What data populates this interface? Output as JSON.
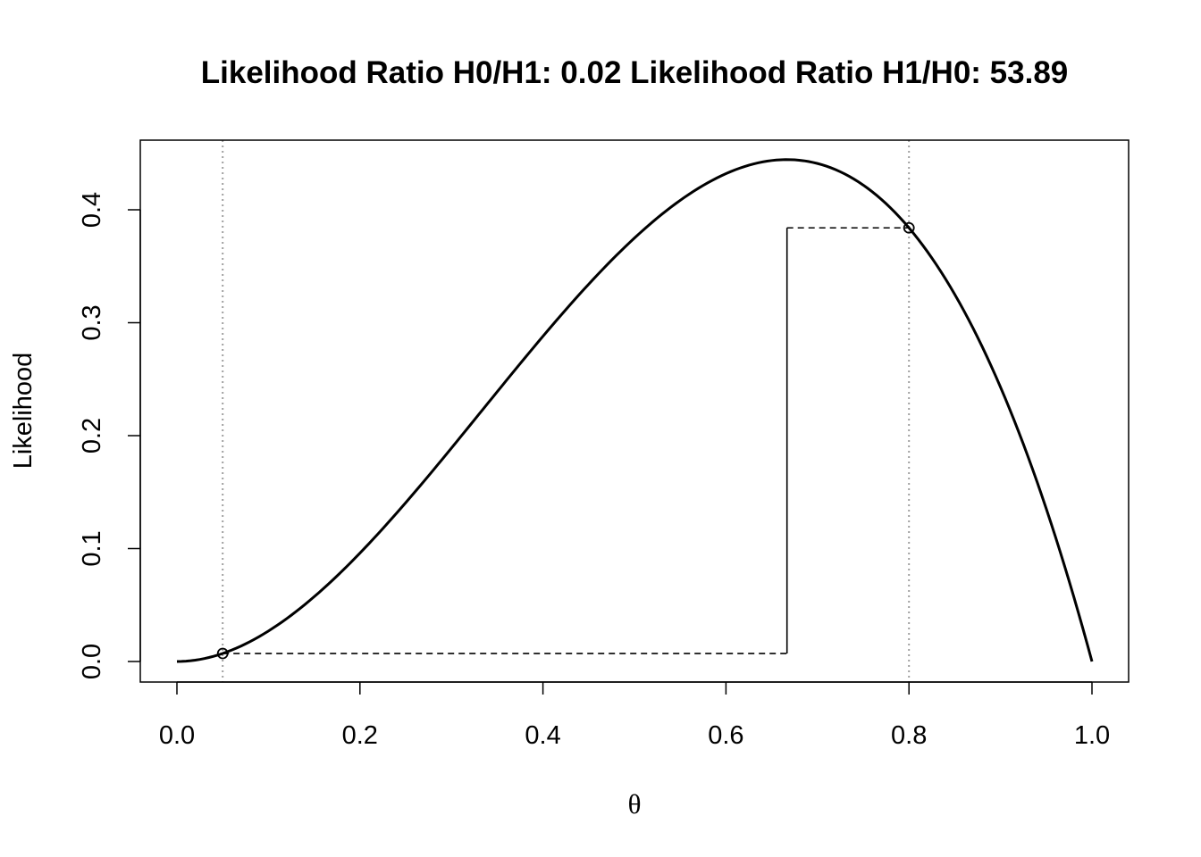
{
  "chart_data": {
    "type": "line",
    "title": "Likelihood Ratio H0/H1: 0.02  Likelihood Ratio H1/H0: 53.89",
    "xlabel": "θ",
    "ylabel": "Likelihood",
    "xlim": [
      0,
      1
    ],
    "ylim": [
      0,
      0.45
    ],
    "x_ticks": [
      0.0,
      0.2,
      0.4,
      0.6,
      0.8,
      1.0
    ],
    "x_tick_labels": [
      "0.0",
      "0.2",
      "0.4",
      "0.6",
      "0.8",
      "1.0"
    ],
    "y_ticks": [
      0.0,
      0.1,
      0.2,
      0.3,
      0.4
    ],
    "y_tick_labels": [
      "0.0",
      "0.1",
      "0.2",
      "0.3",
      "0.4"
    ],
    "grid": false,
    "legend": "none",
    "curve": {
      "x": [
        0.0,
        0.05,
        0.1,
        0.15,
        0.2,
        0.25,
        0.3,
        0.35,
        0.4,
        0.45,
        0.5,
        0.55,
        0.6,
        0.65,
        0.6667,
        0.7,
        0.75,
        0.8,
        0.85,
        0.9,
        0.95,
        1.0
      ],
      "y": [
        0.0,
        0.0071,
        0.027,
        0.0574,
        0.096,
        0.1406,
        0.189,
        0.2389,
        0.288,
        0.3341,
        0.375,
        0.4084,
        0.432,
        0.4436,
        0.4444,
        0.441,
        0.4219,
        0.384,
        0.3251,
        0.243,
        0.1354,
        0.0
      ]
    },
    "reference_lines": {
      "vertical_dotted_at_x": [
        0.05,
        0.8
      ],
      "color": "#a0a0a0"
    },
    "points": [
      {
        "x": 0.05,
        "y": 0.0071
      },
      {
        "x": 0.8,
        "y": 0.384
      }
    ],
    "ratio_marker": {
      "x": 0.6667,
      "y_low": 0.0071,
      "y_high": 0.384
    }
  }
}
